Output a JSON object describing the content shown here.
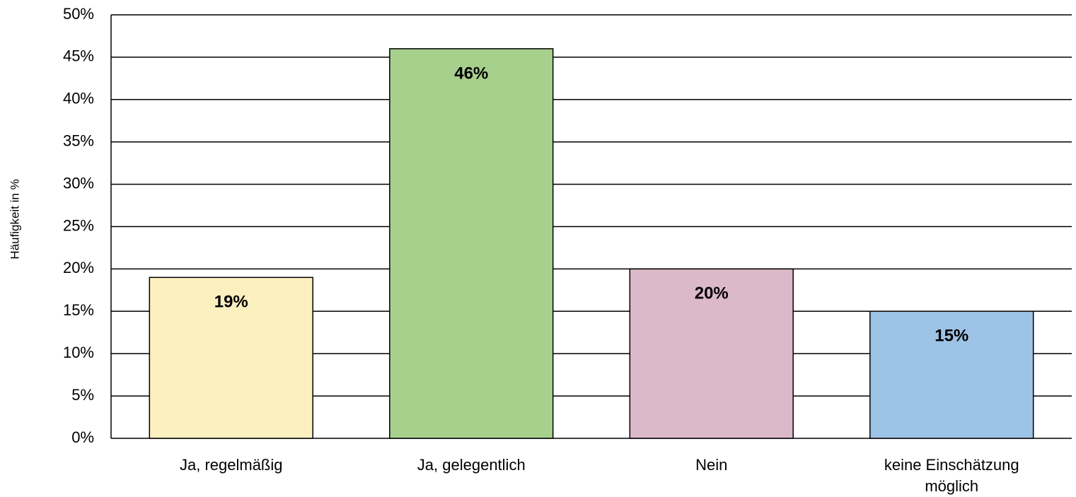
{
  "chart_data": {
    "type": "bar",
    "y_axis_label": "Häufigkeit in %",
    "categories": [
      "Ja, regelmäßig",
      "Ja, gelegentlich",
      "Nein",
      "keine Einschätzung möglich"
    ],
    "values": [
      19,
      46,
      20,
      15
    ],
    "value_labels": [
      "19%",
      "46%",
      "20%",
      "15%"
    ],
    "colors": [
      "#fdf0c0",
      "#a8d08d",
      "#dbb9c9",
      "#9dc3e6"
    ],
    "ylim": [
      0,
      50
    ],
    "yticks": [
      {
        "value": 0,
        "label": "0%"
      },
      {
        "value": 5,
        "label": "5%"
      },
      {
        "value": 10,
        "label": "10%"
      },
      {
        "value": 15,
        "label": "15%"
      },
      {
        "value": 20,
        "label": "20%"
      },
      {
        "value": 25,
        "label": "25%"
      },
      {
        "value": 30,
        "label": "30%"
      },
      {
        "value": 35,
        "label": "35%"
      },
      {
        "value": 40,
        "label": "40%"
      },
      {
        "value": 45,
        "label": "45%"
      },
      {
        "value": 50,
        "label": "50%"
      }
    ],
    "grid": true
  }
}
